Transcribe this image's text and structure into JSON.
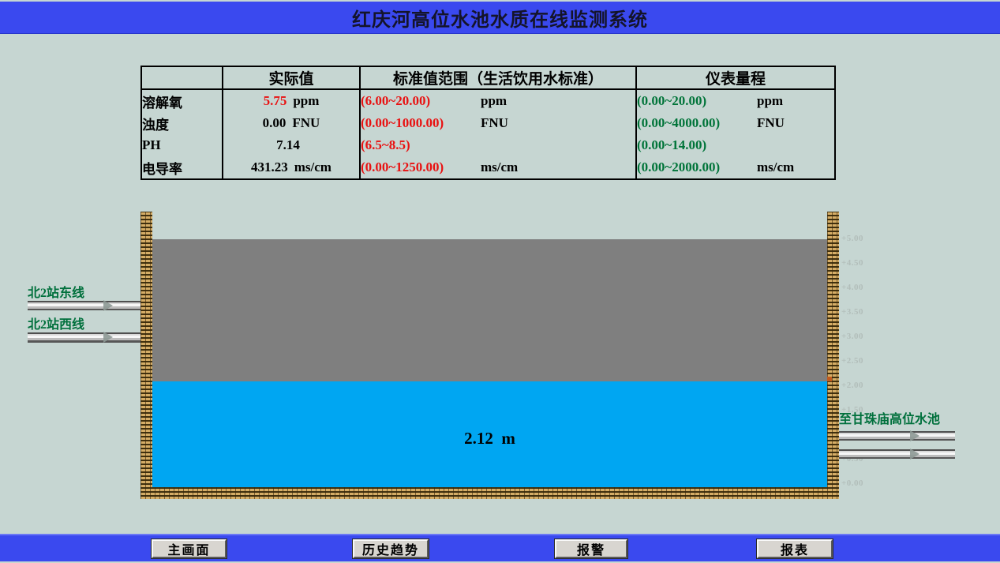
{
  "title": "红庆河高位水池水质在线监测系统",
  "table": {
    "headers": [
      "",
      "实际值",
      "标准值范围（生活饮用水标准）",
      "仪表量程"
    ],
    "rows": [
      {
        "param": "溶解氧",
        "actual": "5.75",
        "actual_unit": "ppm",
        "alarm": true,
        "standard": "(6.00~20.00)",
        "standard_unit": "ppm",
        "range": "(0.00~20.00)",
        "range_unit": "ppm"
      },
      {
        "param": "浊度",
        "actual": "0.00",
        "actual_unit": "FNU",
        "alarm": false,
        "standard": "(0.00~1000.00)",
        "standard_unit": "FNU",
        "range": "(0.00~4000.00)",
        "range_unit": "FNU"
      },
      {
        "param": "PH",
        "actual": "7.14",
        "actual_unit": "",
        "alarm": false,
        "standard": "(6.5~8.5)",
        "standard_unit": "",
        "range": "(0.00~14.00)",
        "range_unit": ""
      },
      {
        "param": "电导率",
        "actual": "431.23",
        "actual_unit": "ms/cm",
        "alarm": false,
        "standard": "(0.00~1250.00)",
        "standard_unit": "ms/cm",
        "range": "(0.00~2000.00)",
        "range_unit": "ms/cm"
      }
    ]
  },
  "tank": {
    "water_level": "2.12  m",
    "scale_labels": [
      "+5.00",
      "+4.50",
      "+4.00",
      "+3.50",
      "+3.00",
      "+2.50",
      "+2.00",
      "+1.50",
      "+1.00",
      "+0.50",
      "+0.00"
    ],
    "inlets": [
      {
        "label": "北2站东线"
      },
      {
        "label": "北2站西线"
      }
    ],
    "outlet_label": "至甘珠庙高位水池"
  },
  "nav": {
    "buttons": [
      {
        "id": "main-screen",
        "label": "主画面"
      },
      {
        "id": "history-trend",
        "label": "历史趋势"
      },
      {
        "id": "alarm",
        "label": "报警"
      },
      {
        "id": "report",
        "label": "报表"
      }
    ]
  },
  "colors": {
    "bg": "#c6d6d2",
    "banner_blue": "#3a49ef",
    "tank_gray": "#7f7f7f",
    "water_blue": "#00a6f2",
    "alarm_red": "#e91111",
    "ok_green": "#007439",
    "label_green": "#00703c",
    "scale_gray": "#b2beba",
    "button_face": "#d8d5d0"
  }
}
